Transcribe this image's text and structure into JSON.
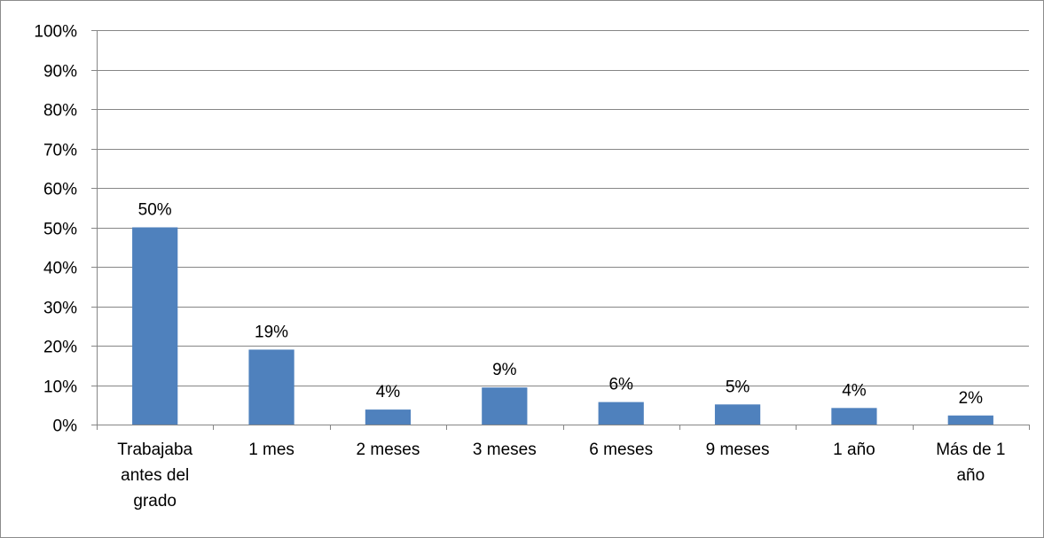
{
  "chart_data": {
    "type": "bar",
    "title": "",
    "xlabel": "",
    "ylabel": "",
    "categories": [
      [
        "Trabajaba",
        "antes del",
        "grado"
      ],
      [
        "1 mes"
      ],
      [
        "2 meses"
      ],
      [
        "3 meses"
      ],
      [
        "6 meses"
      ],
      [
        "9 meses"
      ],
      [
        "1 año"
      ],
      [
        "Más de 1",
        "año"
      ]
    ],
    "values": [
      50,
      19,
      4,
      9,
      6,
      5,
      4,
      2
    ],
    "bar_heights_percent": [
      50,
      19,
      3.8,
      9.4,
      5.7,
      5.1,
      4.2,
      2.3
    ],
    "data_labels": [
      "50%",
      "19%",
      "4%",
      "9%",
      "6%",
      "5%",
      "4%",
      "2%"
    ],
    "ylim": [
      0,
      100
    ],
    "yticks": [
      0,
      10,
      20,
      30,
      40,
      50,
      60,
      70,
      80,
      90,
      100
    ],
    "ytick_labels": [
      "0%",
      "10%",
      "20%",
      "30%",
      "40%",
      "50%",
      "60%",
      "70%",
      "80%",
      "90%",
      "100%"
    ],
    "grid": true,
    "legend": "none",
    "colors": {
      "bar": "#4f81bd",
      "grid": "#868686",
      "axis": "#868686",
      "frame": "#8c8c8c",
      "text": "#000000"
    }
  }
}
